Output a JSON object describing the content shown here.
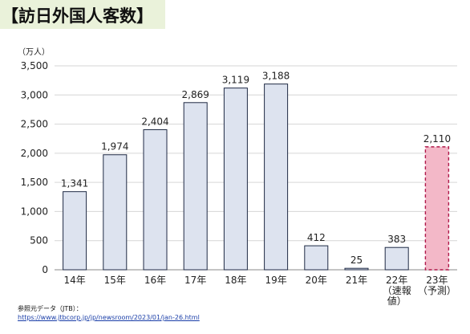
{
  "header": {
    "title": "【訪日外国人客数】"
  },
  "chart_data": {
    "type": "bar",
    "unit_label": "（万人）",
    "ylim": [
      0,
      3500
    ],
    "yticks": [
      "0",
      "500",
      "1,000",
      "1,500",
      "2,000",
      "2,500",
      "3,000",
      "3,500"
    ],
    "ytick_values": [
      0,
      500,
      1000,
      1500,
      2000,
      2500,
      3000,
      3500
    ],
    "grid": true,
    "categories": [
      [
        "14年"
      ],
      [
        "15年"
      ],
      [
        "16年"
      ],
      [
        "17年"
      ],
      [
        "18年"
      ],
      [
        "19年"
      ],
      [
        "20年"
      ],
      [
        "21年"
      ],
      [
        "22年",
        "（速報",
        "値）"
      ],
      [
        "23年",
        "（予測）"
      ]
    ],
    "values": [
      1341,
      1974,
      2404,
      2869,
      3119,
      3188,
      412,
      25,
      383,
      2110
    ],
    "value_labels": [
      "1,341",
      "1,974",
      "2,404",
      "2,869",
      "3,119",
      "3,188",
      "412",
      "25",
      "383",
      "2,110"
    ],
    "forecast_index": 9,
    "colors": {
      "bar_fill": "#dde3ef",
      "bar_stroke": "#1f2a44",
      "forecast_fill": "#f3b8c8",
      "forecast_stroke": "#b0184a",
      "grid": "#d6d6d6"
    }
  },
  "source": {
    "label": "参照元データ（JTB）：",
    "url": "https://www.jtbcorp.jp/jp/newsroom/2023/01/jan-26.html"
  }
}
